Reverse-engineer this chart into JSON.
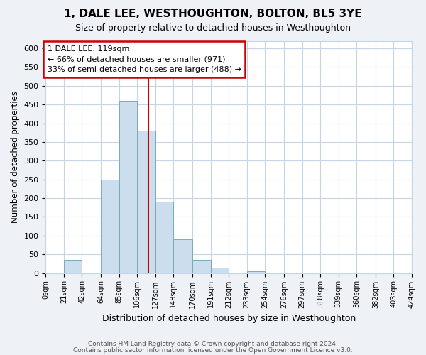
{
  "title": "1, DALE LEE, WESTHOUGHTON, BOLTON, BL5 3YE",
  "subtitle": "Size of property relative to detached houses in Westhoughton",
  "xlabel": "Distribution of detached houses by size in Westhoughton",
  "ylabel": "Number of detached properties",
  "bin_edges": [
    0,
    21,
    42,
    64,
    85,
    106,
    127,
    148,
    170,
    191,
    212,
    233,
    254,
    276,
    297,
    318,
    339,
    360,
    382,
    403,
    424
  ],
  "bin_labels": [
    "0sqm",
    "21sqm",
    "42sqm",
    "64sqm",
    "85sqm",
    "106sqm",
    "127sqm",
    "148sqm",
    "170sqm",
    "191sqm",
    "212sqm",
    "233sqm",
    "254sqm",
    "276sqm",
    "297sqm",
    "318sqm",
    "339sqm",
    "360sqm",
    "382sqm",
    "403sqm",
    "424sqm"
  ],
  "counts": [
    0,
    35,
    0,
    250,
    460,
    380,
    190,
    90,
    35,
    15,
    0,
    5,
    2,
    1,
    0,
    0,
    1,
    0,
    0,
    1
  ],
  "bar_color": "#ccdded",
  "bar_edge_color": "#7aaabb",
  "vline_x": 119,
  "vline_color": "#cc0000",
  "annotation_title": "1 DALE LEE: 119sqm",
  "annotation_line1": "← 66% of detached houses are smaller (971)",
  "annotation_line2": "33% of semi-detached houses are larger (488) →",
  "annotation_box_color": "#cc0000",
  "ylim": [
    0,
    620
  ],
  "yticks": [
    0,
    50,
    100,
    150,
    200,
    250,
    300,
    350,
    400,
    450,
    500,
    550,
    600
  ],
  "footer1": "Contains HM Land Registry data © Crown copyright and database right 2024.",
  "footer2": "Contains public sector information licensed under the Open Government Licence v3.0.",
  "bg_color": "#eef2f7",
  "plot_bg_color": "#ffffff",
  "grid_color": "#c5d5e5"
}
